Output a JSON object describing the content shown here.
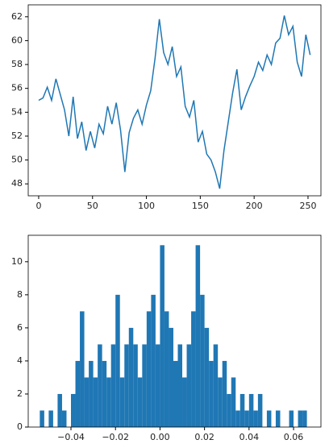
{
  "chart_data": [
    {
      "type": "line",
      "color": "#1f77b4",
      "x": [
        0,
        4,
        8,
        12,
        16,
        20,
        24,
        28,
        32,
        36,
        40,
        44,
        48,
        52,
        56,
        60,
        64,
        68,
        72,
        76,
        80,
        84,
        88,
        92,
        96,
        100,
        104,
        108,
        112,
        116,
        120,
        124,
        128,
        132,
        136,
        140,
        144,
        148,
        152,
        156,
        160,
        164,
        168,
        172,
        176,
        180,
        184,
        188,
        192,
        196,
        200,
        204,
        208,
        212,
        216,
        220,
        224,
        228,
        232,
        236,
        240,
        244,
        248,
        252
      ],
      "values": [
        55.0,
        55.2,
        56.1,
        55.0,
        56.8,
        55.5,
        54.2,
        52.0,
        55.3,
        51.8,
        53.2,
        50.8,
        52.4,
        51.0,
        53.0,
        52.2,
        54.5,
        53.0,
        54.8,
        52.5,
        49.0,
        52.3,
        53.5,
        54.2,
        53.0,
        54.6,
        55.8,
        58.5,
        61.8,
        59.0,
        58.0,
        59.5,
        57.0,
        57.8,
        54.5,
        53.6,
        55.0,
        51.5,
        52.4,
        50.5,
        50.0,
        49.0,
        47.6,
        50.8,
        53.2,
        55.6,
        57.6,
        54.2,
        55.3,
        56.2,
        57.0,
        58.2,
        57.5,
        58.8,
        58.0,
        59.8,
        60.2,
        62.1,
        60.5,
        61.2,
        58.2,
        57.0,
        60.5,
        58.8
      ],
      "xlim": [
        -9.7,
        262
      ],
      "ylim": [
        47,
        63
      ],
      "xticks": [
        0,
        50,
        100,
        150,
        200,
        250
      ],
      "yticks": [
        48,
        50,
        52,
        54,
        56,
        58,
        60,
        62
      ]
    },
    {
      "type": "histogram",
      "color": "#1f77b4",
      "bins": [
        -0.054,
        -0.052,
        -0.05,
        -0.048,
        -0.046,
        -0.044,
        -0.042,
        -0.04,
        -0.038,
        -0.036,
        -0.034,
        -0.032,
        -0.03,
        -0.028,
        -0.026,
        -0.024,
        -0.022,
        -0.02,
        -0.018,
        -0.016,
        -0.014,
        -0.012,
        -0.01,
        -0.008,
        -0.006,
        -0.004,
        -0.002,
        0,
        0.002,
        0.004,
        0.006,
        0.008,
        0.01,
        0.012,
        0.014,
        0.016,
        0.018,
        0.02,
        0.022,
        0.024,
        0.026,
        0.028,
        0.03,
        0.032,
        0.034,
        0.036,
        0.038,
        0.04,
        0.042,
        0.044,
        0.046,
        0.048,
        0.05,
        0.052,
        0.054,
        0.056,
        0.058,
        0.06,
        0.062,
        0.064,
        0.066
      ],
      "values": [
        1,
        0,
        1,
        0,
        2,
        1,
        0,
        2,
        4,
        7,
        3,
        4,
        3,
        5,
        4,
        3,
        5,
        8,
        3,
        5,
        6,
        5,
        3,
        5,
        7,
        8,
        5,
        11,
        7,
        6,
        4,
        5,
        3,
        5,
        7,
        11,
        8,
        6,
        4,
        5,
        3,
        4,
        2,
        3,
        1,
        2,
        1,
        2,
        1,
        2,
        0,
        1,
        0,
        1,
        0,
        0,
        1,
        0,
        1,
        1
      ],
      "xlim": [
        -0.0592,
        0.0723
      ],
      "ylim": [
        0,
        11.6
      ],
      "xticks": [
        {
          "value": -0.04,
          "label": "−0.04"
        },
        {
          "value": -0.02,
          "label": "−0.02"
        },
        {
          "value": 0,
          "label": "0.00"
        },
        {
          "value": 0.02,
          "label": "0.02"
        },
        {
          "value": 0.04,
          "label": "0.04"
        },
        {
          "value": 0.06,
          "label": "0.06"
        }
      ],
      "yticks": [
        0,
        2,
        4,
        6,
        8,
        10
      ]
    }
  ]
}
